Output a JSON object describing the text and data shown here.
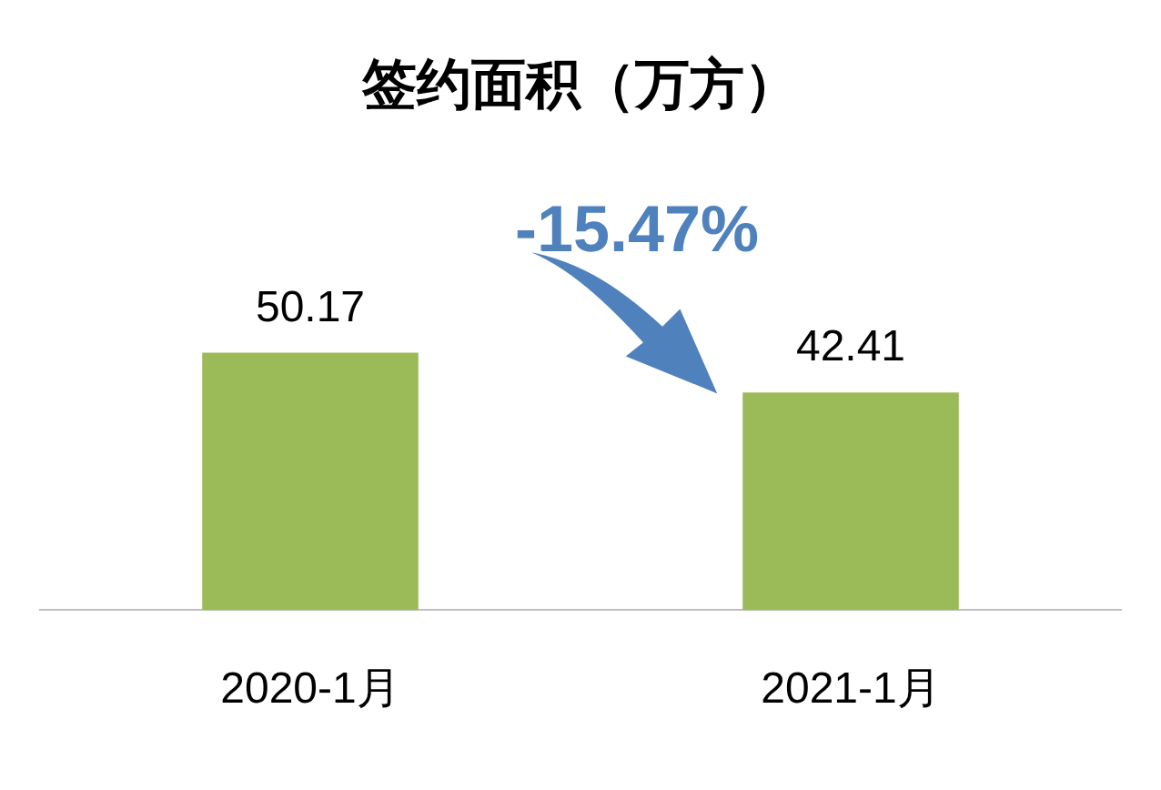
{
  "chart_data": {
    "type": "bar",
    "title": "签约面积（万方）",
    "categories": [
      "2020-1月",
      "2021-1月"
    ],
    "values": [
      50.17,
      42.41
    ],
    "color": "#9bbb59",
    "data_labels": true,
    "grid": false,
    "legend": false,
    "annotations": [
      "-15.47%"
    ]
  }
}
